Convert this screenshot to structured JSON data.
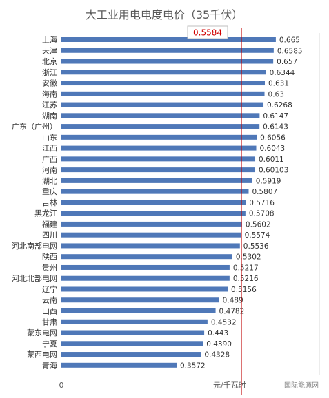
{
  "chart_data": {
    "type": "bar",
    "orientation": "horizontal",
    "title": "大工业用电电度电价（35千伏）",
    "categories": [
      "上海",
      "天津",
      "北京",
      "浙江",
      "安徽",
      "海南",
      "江苏",
      "湖南",
      "广东（广州）",
      "山东",
      "江西",
      "广西",
      "河南",
      "湖北",
      "重庆",
      "吉林",
      "黑龙江",
      "福建",
      "四川",
      "河北南部电网",
      "陕西",
      "贵州",
      "河北北部电网",
      "辽宁",
      "云南",
      "山西",
      "甘肃",
      "蒙东电网",
      "宁夏",
      "蒙西电网",
      "青海"
    ],
    "values": [
      0.665,
      0.6585,
      0.657,
      0.6344,
      0.631,
      0.63,
      0.6268,
      0.6147,
      0.6143,
      0.6056,
      0.6043,
      0.6011,
      0.60103,
      0.5919,
      0.5807,
      0.5716,
      0.5708,
      0.5602,
      0.5574,
      0.5536,
      0.5302,
      0.5217,
      0.5216,
      0.5156,
      0.489,
      0.4782,
      0.4532,
      0.443,
      0.439,
      0.4328,
      0.3572
    ],
    "value_labels": [
      "0.665",
      "0.6585",
      "0.657",
      "0.6344",
      "0.631",
      "0.63",
      "0.6268",
      "0.6147",
      "0.6143",
      "0.6056",
      "0.6043",
      "0.6011",
      "0.60103",
      "0.5919",
      "0.5807",
      "0.5716",
      "0.5708",
      "0.5602",
      "0.5574",
      "0.5536",
      "0.5302",
      "0.5217",
      "0.5216",
      "0.5156",
      "0.489",
      "0.4782",
      "0.4532",
      "0.443",
      "0.4390",
      "0.4328",
      "0.3572"
    ],
    "x_tick_labels": [
      "0"
    ],
    "x_unit_label": "元/千瓦时",
    "reference_line": {
      "value": 0.5584,
      "label": "0.5584",
      "color": "#c00000"
    },
    "xlim": [
      0,
      0.8
    ],
    "bar_color": "#4f78b8",
    "grid": false,
    "legend": "none"
  },
  "watermark": "国际能源网"
}
